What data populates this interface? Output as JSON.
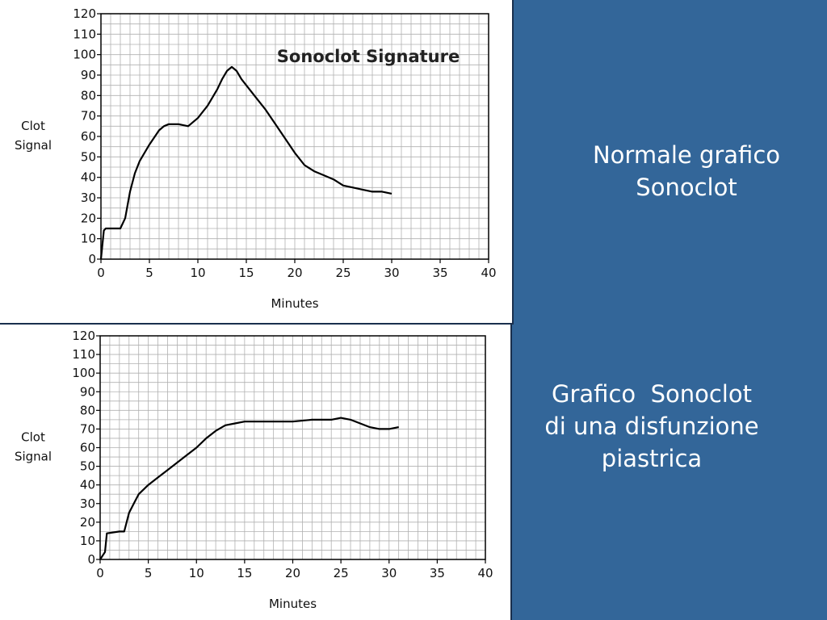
{
  "captions": {
    "top": [
      "Normale grafico",
      "Sonoclot"
    ],
    "bottom": [
      "Grafico  Sonoclot",
      "di una disfunzione",
      "piastrica"
    ]
  },
  "colors": {
    "background": "#336699",
    "panel": "#ffffff",
    "grid": "#b0b0b0",
    "line": "#000000"
  },
  "chart_data": [
    {
      "type": "line",
      "title": "Sonoclot Signature",
      "xlabel": "Minutes",
      "ylabel": "Clot Signal",
      "xlim": [
        0,
        40
      ],
      "ylim": [
        0,
        120
      ],
      "xticks": [
        0,
        5,
        10,
        15,
        20,
        25,
        30,
        35,
        40
      ],
      "yticks": [
        0,
        10,
        20,
        30,
        40,
        50,
        60,
        70,
        80,
        90,
        100,
        110,
        120
      ],
      "grid": true,
      "series": [
        {
          "x": [
            0,
            0.3,
            0.5,
            2.0,
            2.5,
            3.0,
            3.5,
            4.0,
            5.0,
            6.0,
            6.5,
            7.0,
            8.0,
            9.0,
            10.0,
            11.0,
            12.0,
            12.5,
            13.0,
            13.5,
            14.0,
            14.5,
            15.0,
            16.0,
            17.0,
            18.0,
            19.0,
            20.0,
            21.0,
            22.0,
            23.0,
            24.0,
            25.0,
            26.0,
            27.0,
            28.0,
            29.0,
            30.0
          ],
          "y": [
            0,
            14,
            15,
            15,
            20,
            33,
            42,
            48,
            56,
            63,
            65,
            66,
            66,
            65,
            69,
            75,
            83,
            88,
            92,
            94,
            92,
            88,
            85,
            79,
            73,
            66,
            59,
            52,
            46,
            43,
            41,
            39,
            36,
            35,
            34,
            33,
            33,
            32
          ]
        }
      ]
    },
    {
      "type": "line",
      "title": "",
      "xlabel": "Minutes",
      "ylabel": "Clot Signal",
      "xlim": [
        0,
        40
      ],
      "ylim": [
        0,
        120
      ],
      "xticks": [
        0,
        5,
        10,
        15,
        20,
        25,
        30,
        35,
        40
      ],
      "yticks": [
        0,
        10,
        20,
        30,
        40,
        50,
        60,
        70,
        80,
        90,
        100,
        110,
        120
      ],
      "grid": true,
      "series": [
        {
          "x": [
            0,
            0.5,
            0.7,
            2.0,
            2.5,
            3.0,
            3.5,
            4.0,
            5.0,
            6.0,
            7.0,
            8.0,
            9.0,
            10.0,
            11.0,
            12.0,
            13.0,
            14.0,
            15.0,
            17.0,
            20.0,
            22.0,
            24.0,
            25.0,
            26.0,
            27.0,
            28.0,
            29.0,
            30.0,
            31.0
          ],
          "y": [
            0,
            4,
            14,
            15,
            15,
            25,
            30,
            35,
            40,
            44,
            48,
            52,
            56,
            60,
            65,
            69,
            72,
            73,
            74,
            74,
            74,
            75,
            75,
            76,
            75,
            73,
            71,
            70,
            70,
            71
          ]
        }
      ]
    }
  ]
}
